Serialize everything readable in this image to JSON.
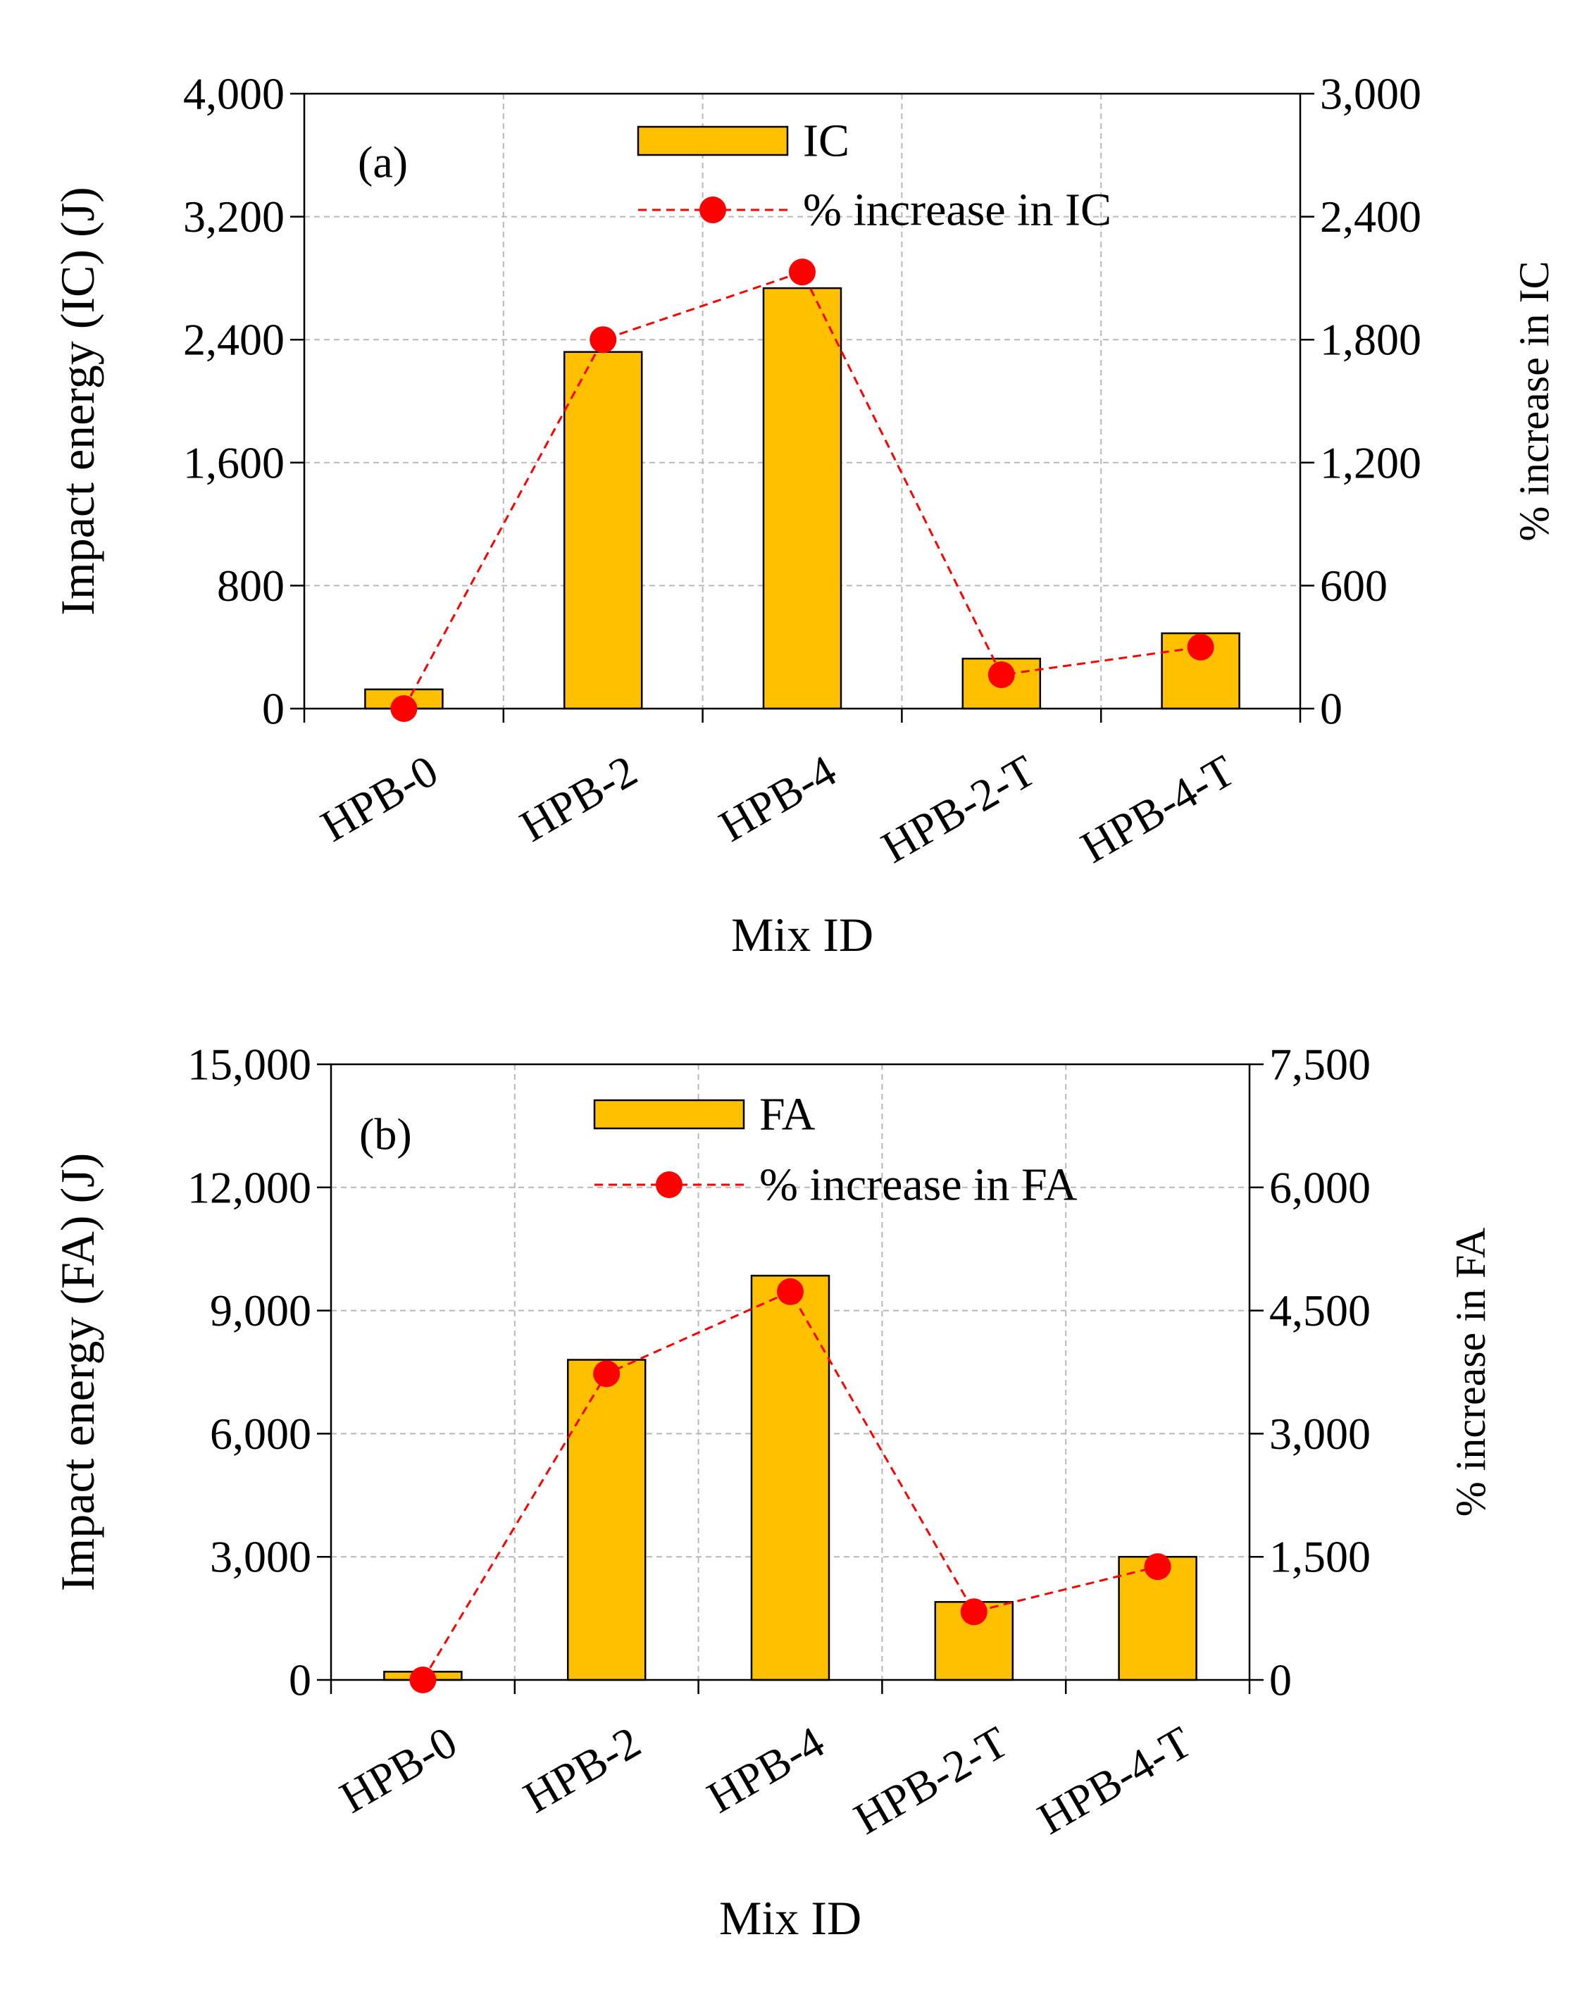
{
  "chart_data": [
    {
      "type": "bar",
      "panel_label": "(a)",
      "categories": [
        "HPB-0",
        "HPB-2",
        "HPB-4",
        "HPB-2-T",
        "HPB-4-T"
      ],
      "xlabel": "Mix ID",
      "ylabel": "Impact energy (IC) (J)",
      "ylabel_right": "% increase in IC",
      "ylim": [
        0,
        4000
      ],
      "ylim_right": [
        0,
        3000
      ],
      "yticks": [
        "0",
        "800",
        "1,600",
        "2,400",
        "3,200",
        "4,000"
      ],
      "yticks_right": [
        "0",
        "600",
        "1,200",
        "1,800",
        "2,400",
        "3,000"
      ],
      "grid": true,
      "legend_position": "top-center",
      "series": [
        {
          "name": "IC",
          "kind": "bar",
          "axis": "left",
          "color": "#ffc000",
          "values": [
            125,
            2320,
            2735,
            325,
            490
          ]
        },
        {
          "name": "% increase in IC",
          "kind": "line",
          "axis": "right",
          "color": "#ff0000",
          "values": [
            0,
            1800,
            2130,
            165,
            300
          ]
        }
      ]
    },
    {
      "type": "bar",
      "panel_label": "(b)",
      "categories": [
        "HPB-0",
        "HPB-2",
        "HPB-4",
        "HPB-2-T",
        "HPB-4-T"
      ],
      "xlabel": "Mix ID",
      "ylabel": "Impact energy (FA) (J)",
      "ylabel_right": "% increase in FA",
      "ylim": [
        0,
        15000
      ],
      "ylim_right": [
        0,
        7500
      ],
      "yticks": [
        "0",
        "3,000",
        "6,000",
        "9,000",
        "12,000",
        "15,000"
      ],
      "yticks_right": [
        "0",
        "1,500",
        "3,000",
        "4,500",
        "6,000",
        "7,500"
      ],
      "grid": true,
      "legend_position": "top-center",
      "series": [
        {
          "name": "FA",
          "kind": "bar",
          "axis": "left",
          "color": "#ffc000",
          "values": [
            200,
            7800,
            9850,
            1900,
            3000
          ]
        },
        {
          "name": "% increase in FA",
          "kind": "line",
          "axis": "right",
          "color": "#ff0000",
          "values": [
            0,
            3730,
            4730,
            830,
            1380
          ]
        }
      ]
    }
  ]
}
